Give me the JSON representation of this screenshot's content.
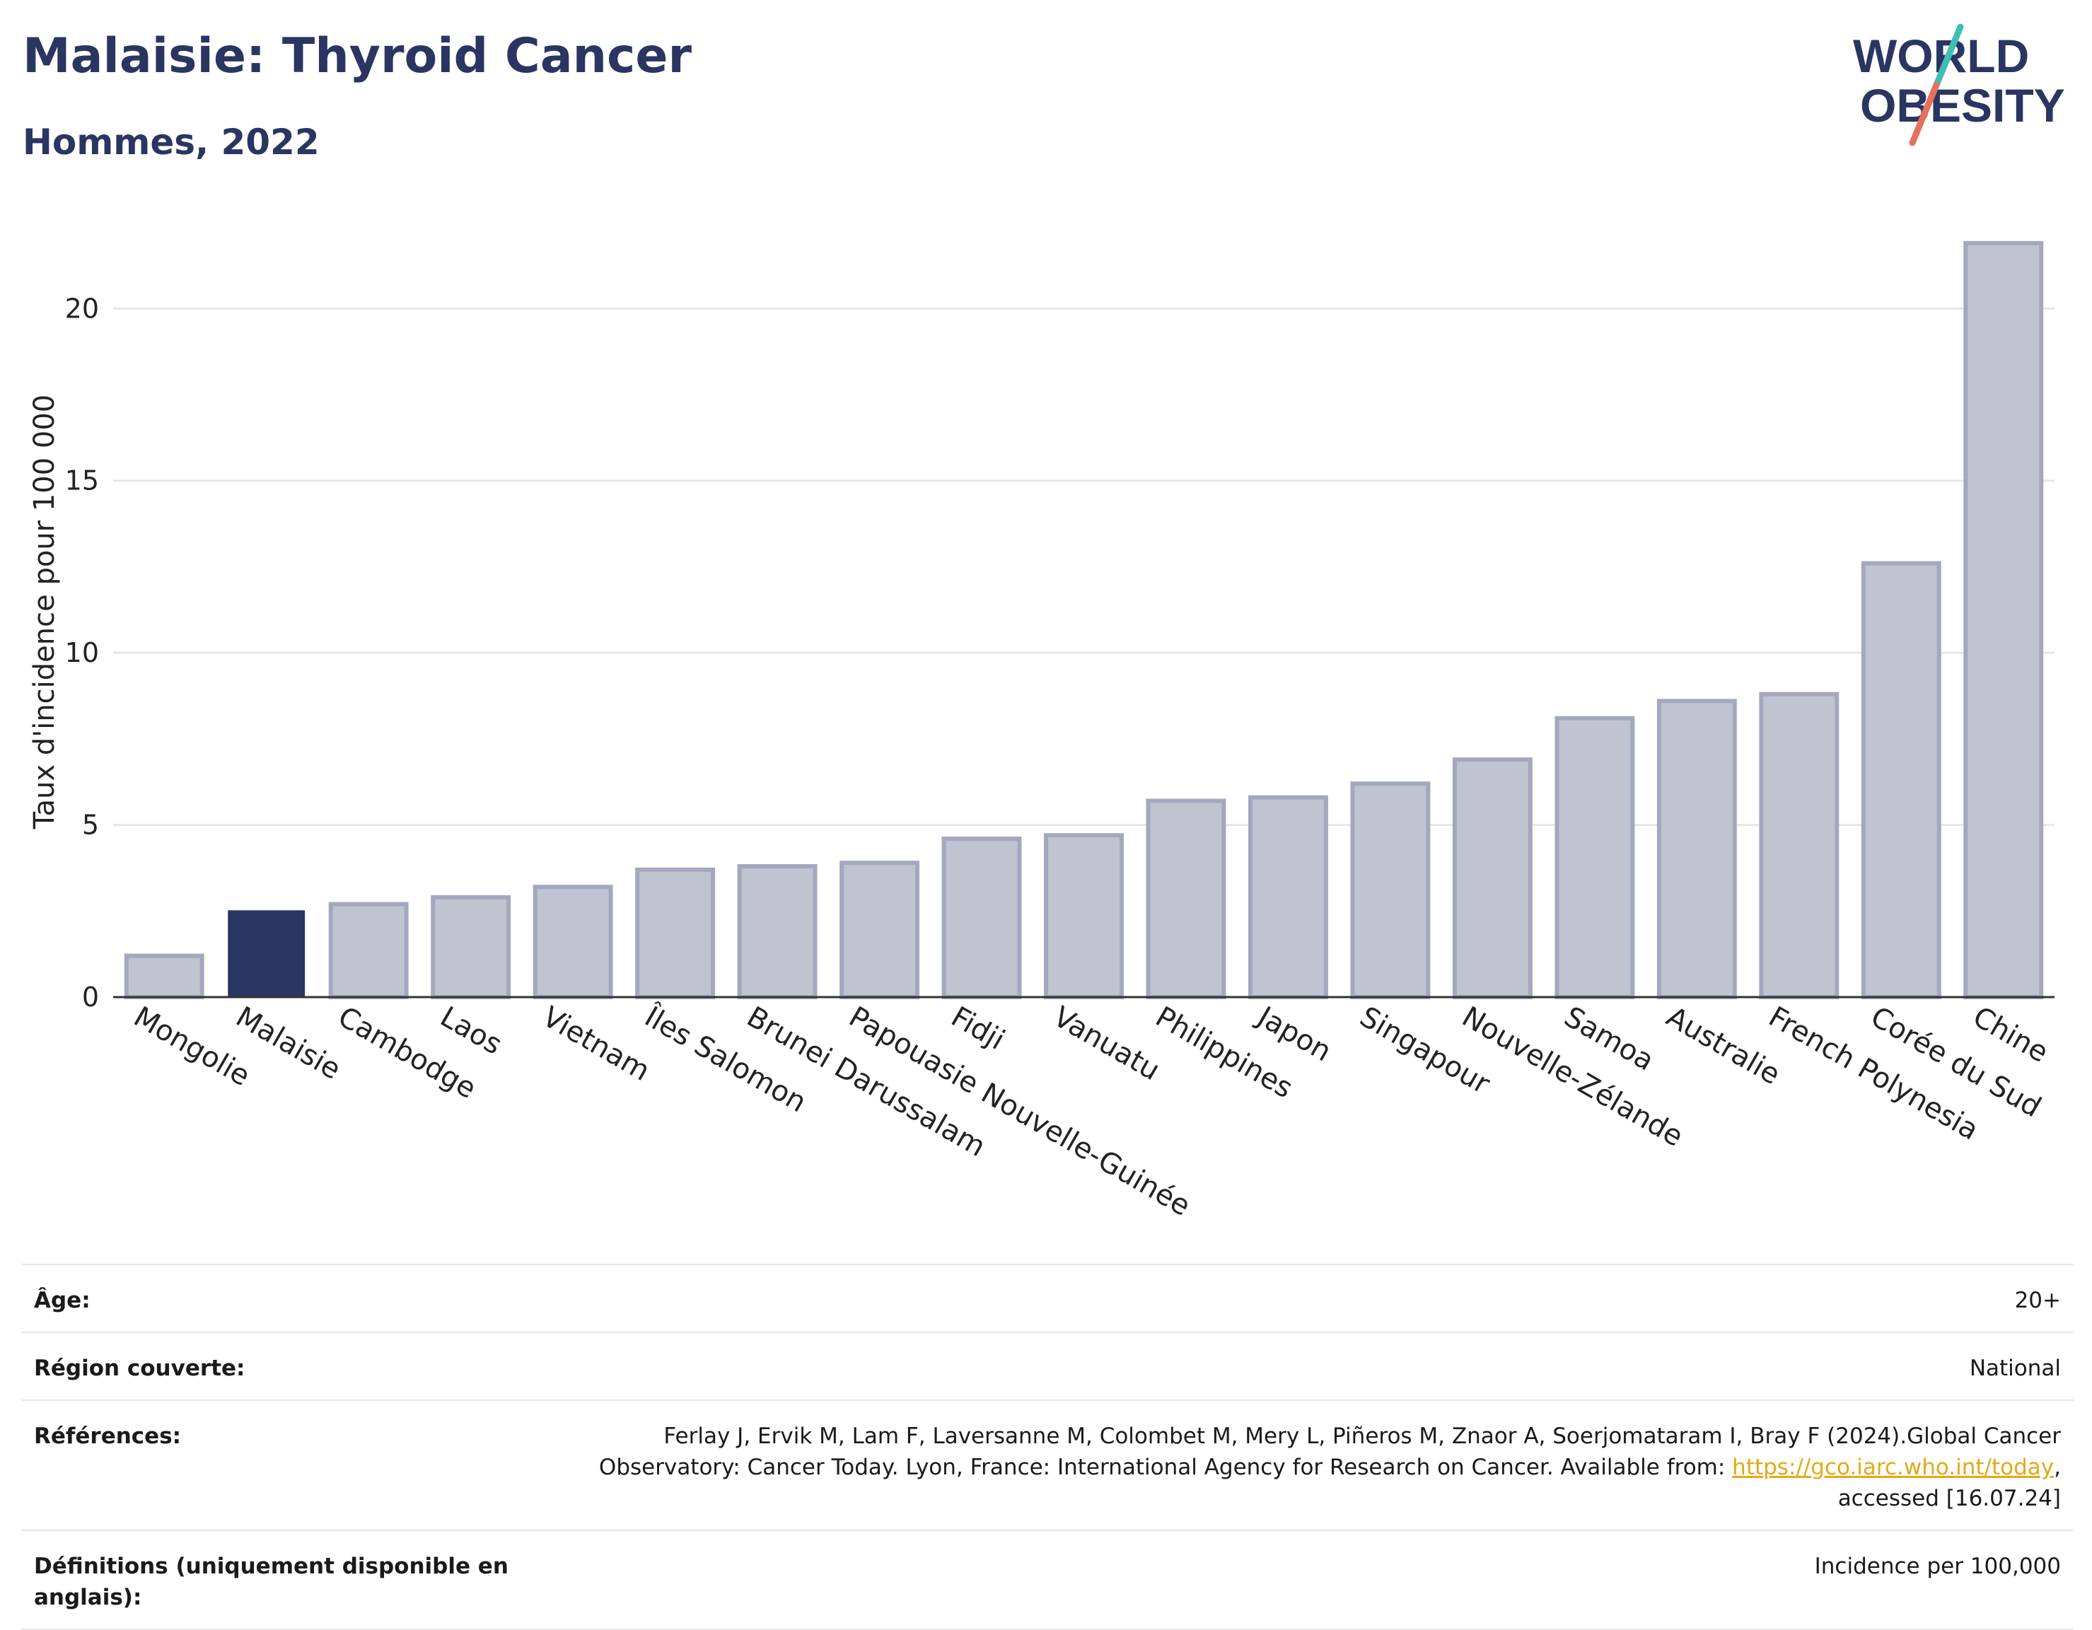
{
  "header": {
    "title": "Malaisie: Thyroid Cancer",
    "subtitle": "Hommes, 2022"
  },
  "logo": {
    "line1": "WORLD",
    "line2": "OBESITY",
    "colors": {
      "text": "#2b3561",
      "slash_teal": "#3fbfb4",
      "slash_coral": "#e8705a"
    }
  },
  "colors": {
    "highlight_bar": "#2b3561",
    "other_bar_fill": "#c0c3d0",
    "other_bar_stroke": "#a3a8bd",
    "grid": "#e6e6e6",
    "axis": "#333333",
    "link": "#e6a817"
  },
  "chart_data": {
    "type": "bar",
    "title": "",
    "xlabel": "",
    "ylabel": "Taux d'incidence pour 100 000",
    "ylim": [
      0,
      22.8
    ],
    "yticks": [
      0,
      5,
      10,
      15,
      20
    ],
    "grid": true,
    "highlight": "Malaisie",
    "categories": [
      "Mongolie",
      "Malaisie",
      "Cambodge",
      "Laos",
      "Vietnam",
      "Îles Salomon",
      "Brunei Darussalam",
      "Papouasie Nouvelle-Guinée",
      "Fidji",
      "Vanuatu",
      "Philippines",
      "Japon",
      "Singapour",
      "Nouvelle-Zélande",
      "Samoa",
      "Australie",
      "French Polynesia",
      "Corée du Sud",
      "Chine"
    ],
    "values": [
      1.2,
      2.5,
      2.7,
      2.9,
      3.2,
      3.7,
      3.8,
      3.9,
      4.6,
      4.7,
      5.7,
      5.8,
      6.2,
      6.9,
      8.1,
      8.6,
      8.8,
      12.6,
      21.9
    ]
  },
  "info": {
    "age_label": "Âge:",
    "age_value": "20+",
    "region_label": "Région couverte:",
    "region_value": "National",
    "references_label": "Références:",
    "references_text_1": "Ferlay J, Ervik M, Lam F, Laversanne M, Colombet M, Mery L, Piñeros M, Znaor A, Soerjomataram I, Bray F (2024).Global Cancer",
    "references_text_2": "Observatory: Cancer Today. Lyon, France: International Agency for Research on Cancer. Available from: ",
    "references_link": "https://gco.iarc.who.int/today",
    "references_text_3": ",",
    "references_text_4": "accessed [16.07.24]",
    "definitions_label": "Définitions (uniquement disponible en anglais):",
    "definitions_value": "Incidence per 100,000"
  }
}
